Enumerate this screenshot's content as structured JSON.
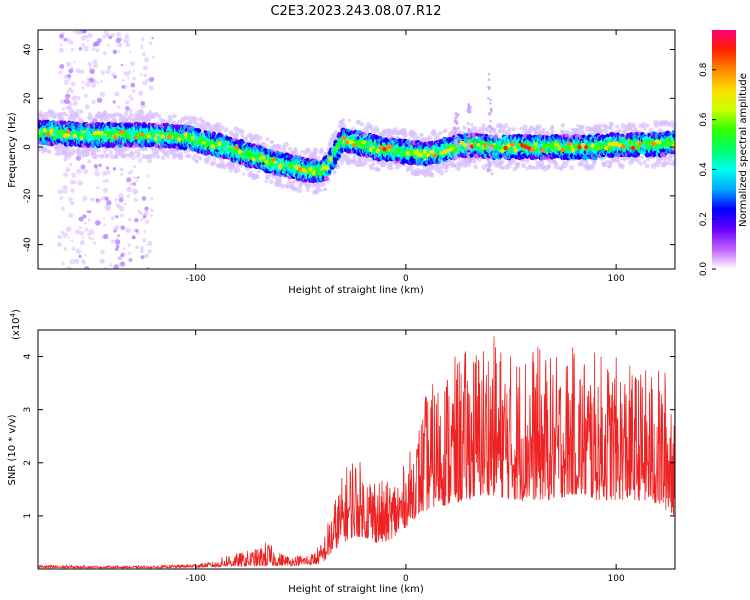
{
  "title": "C2E3.2023.243.08.07.R12",
  "colors": {
    "snr_line": "#ee2222",
    "axis": "#000000"
  },
  "colorbar": {
    "label": "Normalized spectral amplitude",
    "ticks": [
      "0.0",
      "0.2",
      "0.4",
      "0.6",
      "0.8"
    ],
    "tick_values": [
      0.0,
      0.2,
      0.4,
      0.6,
      0.8
    ],
    "range": [
      0,
      0.96
    ],
    "colormap": [
      "#ffffff",
      "#c060ff",
      "#6600ff",
      "#0000ff",
      "#00aaff",
      "#00ffee",
      "#00ff66",
      "#33ff00",
      "#ccff00",
      "#ffdd00",
      "#ff8800",
      "#ff2200",
      "#ff0077"
    ]
  },
  "chart_data": [
    {
      "type": "heatmap",
      "ylabel": "Frequency (Hz)",
      "xlabel": "Height of straight line (km)",
      "xlim": [
        -175,
        128
      ],
      "ylim": [
        -50,
        48
      ],
      "x_ticks": [
        -100,
        0,
        100
      ],
      "x_tick_labels": [
        "-100",
        "0",
        "100"
      ],
      "y_ticks": [
        -40,
        -20,
        0,
        20,
        40
      ],
      "y_tick_labels": [
        "-40",
        "-20",
        "0",
        "20",
        "40"
      ],
      "ridge": {
        "x": [
          -175,
          -150,
          -125,
          -105,
          -90,
          -75,
          -60,
          -50,
          -42,
          -38,
          -30,
          -20,
          -10,
          0,
          10,
          20,
          30,
          40,
          50,
          60,
          70,
          80,
          90,
          100,
          110,
          120,
          128
        ],
        "freq": [
          6,
          5,
          5,
          4,
          1,
          -3,
          -7,
          -9,
          -10,
          -9,
          3,
          1,
          -1,
          -2,
          -3,
          -1,
          1,
          0,
          0,
          0,
          0,
          0,
          0,
          1,
          1,
          1,
          2
        ]
      }
    },
    {
      "type": "line",
      "ylabel": "SNR (10 * v/v)",
      "y_exponent": "(x10",
      "y_exponent_power": "4",
      "y_exponent_close": ")",
      "xlabel": "Height of straight line (km)",
      "xlim": [
        -175,
        128
      ],
      "ylim": [
        0,
        4.5
      ],
      "x_ticks": [
        -100,
        0,
        100
      ],
      "x_tick_labels": [
        "-100",
        "0",
        "100"
      ],
      "y_ticks": [
        1,
        2,
        3,
        4
      ],
      "y_tick_labels": [
        "1",
        "2",
        "3",
        "4"
      ],
      "series": [
        {
          "x": [
            -175,
            -150,
            -120,
            -100,
            -90,
            -85,
            -80,
            -75,
            -70,
            -66,
            -62,
            -55,
            -45,
            -40,
            -35,
            -30,
            -25,
            -20,
            -15,
            -10,
            -5,
            0,
            5,
            10,
            15,
            20,
            30,
            40,
            50,
            60,
            70,
            80,
            90,
            100,
            110,
            120,
            128
          ],
          "envelope": [
            0.08,
            0.06,
            0.06,
            0.1,
            0.15,
            0.3,
            0.3,
            0.35,
            0.4,
            0.55,
            0.35,
            0.25,
            0.3,
            0.5,
            1.2,
            1.8,
            2.3,
            1.9,
            1.9,
            1.6,
            1.8,
            2.0,
            2.6,
            3.4,
            3.6,
            3.9,
            4.2,
            4.5,
            4.1,
            4.3,
            4.0,
            4.2,
            4.1,
            4.0,
            3.8,
            3.8,
            3.9
          ],
          "baseline": [
            0.02,
            0.02,
            0.02,
            0.03,
            0.04,
            0.05,
            0.05,
            0.05,
            0.05,
            0.05,
            0.06,
            0.06,
            0.08,
            0.1,
            0.3,
            0.5,
            0.6,
            0.6,
            0.5,
            0.5,
            0.6,
            0.8,
            1.0,
            1.1,
            1.2,
            1.2,
            1.3,
            1.4,
            1.3,
            1.3,
            1.3,
            1.4,
            1.3,
            1.3,
            1.3,
            1.2,
            1.0
          ]
        }
      ]
    }
  ]
}
